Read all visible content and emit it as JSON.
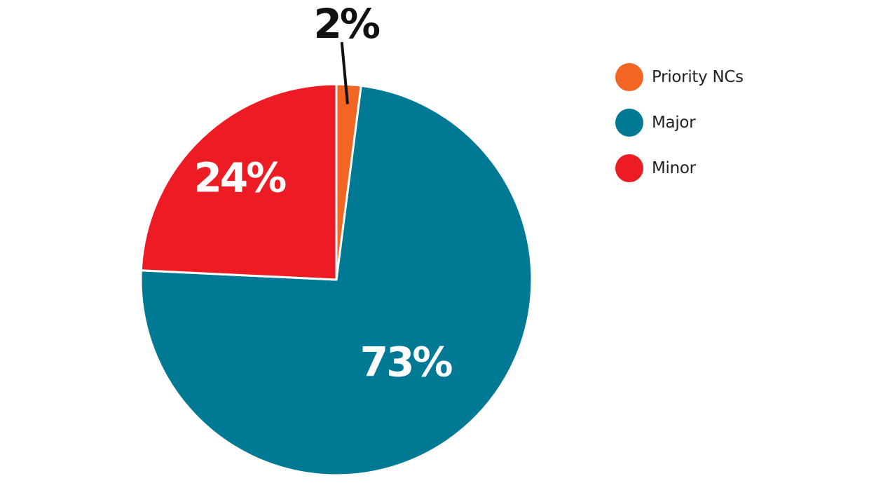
{
  "chart_data": {
    "type": "pie",
    "title": "",
    "slices": [
      {
        "name": "Priority NCs",
        "value": 2,
        "label": "2%",
        "color": "#f26522"
      },
      {
        "name": "Major",
        "value": 73,
        "label": "73%",
        "color": "#007a94"
      },
      {
        "name": "Minor",
        "value": 24,
        "label": "24%",
        "color": "#ed1c24"
      }
    ],
    "legend_position": "right"
  }
}
